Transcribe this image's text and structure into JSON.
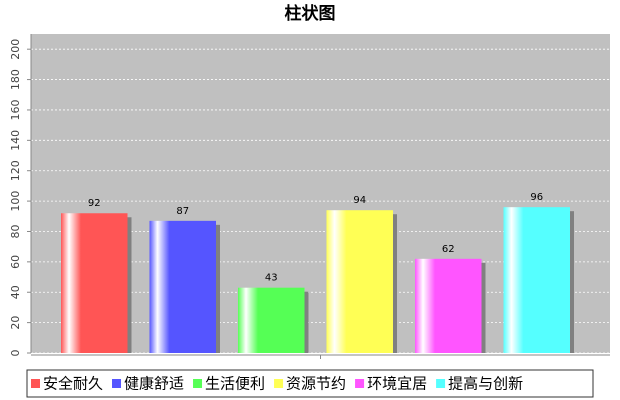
{
  "chart_data": {
    "type": "bar",
    "title": "柱状图",
    "categories": [
      null
    ],
    "series": [
      {
        "name": "安全耐久",
        "color": "#ff5555",
        "values": [
          92
        ]
      },
      {
        "name": "健康舒适",
        "color": "#5555ff",
        "values": [
          87
        ]
      },
      {
        "name": "生活便利",
        "color": "#55ff55",
        "values": [
          43
        ]
      },
      {
        "name": "资源节约",
        "color": "#ffff55",
        "values": [
          94
        ]
      },
      {
        "name": "环境宜居",
        "color": "#ff55ff",
        "values": [
          62
        ]
      },
      {
        "name": "提高与创新",
        "color": "#55ffff",
        "values": [
          96
        ]
      }
    ],
    "ylim": [
      0,
      210
    ],
    "yticks": [
      0,
      20,
      40,
      60,
      80,
      100,
      120,
      140,
      160,
      180,
      200
    ],
    "grid": true,
    "legend": "bottom"
  }
}
